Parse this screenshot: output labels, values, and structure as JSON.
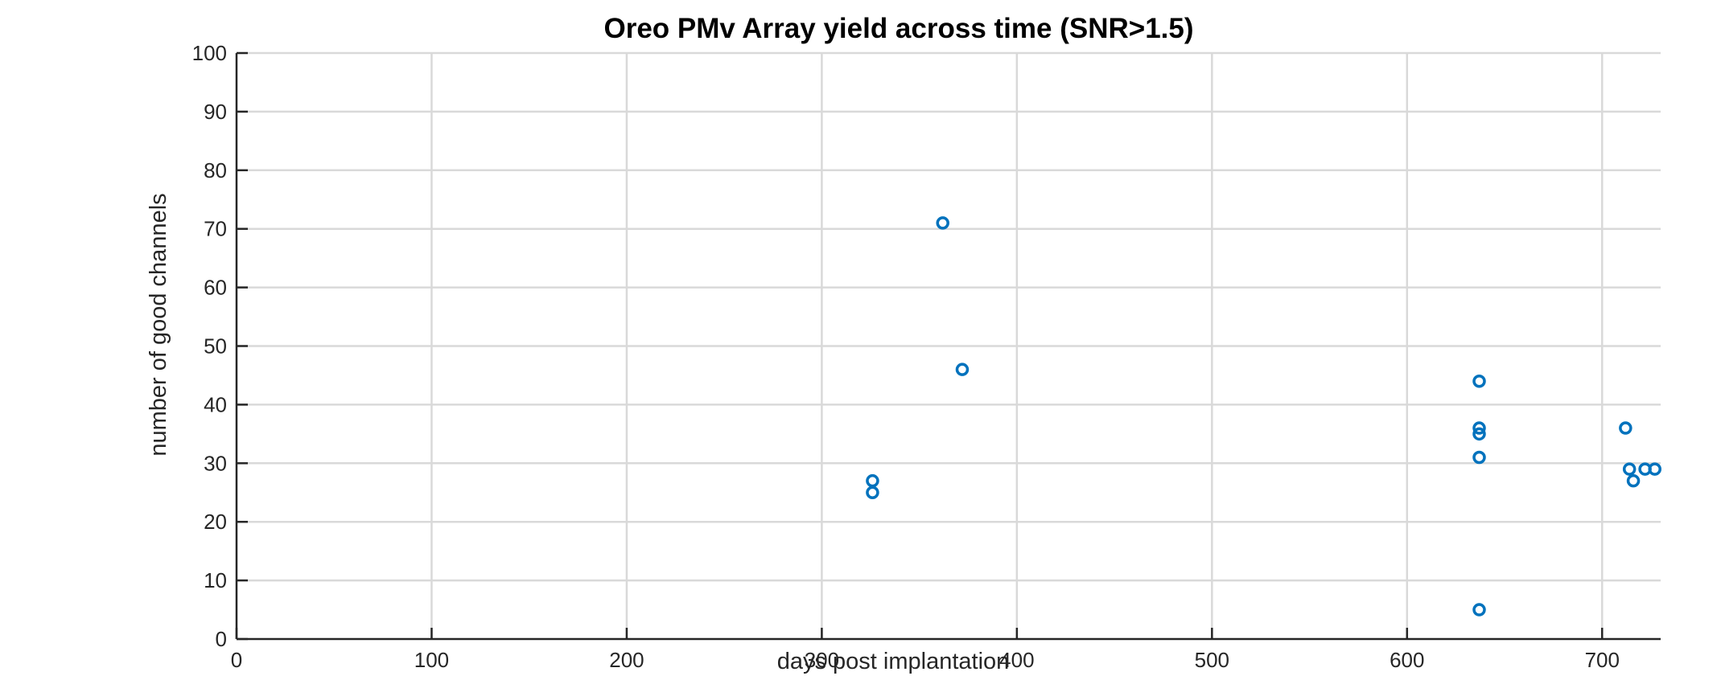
{
  "chart_data": {
    "type": "scatter",
    "title": "Oreo PMv Array yield across time (SNR>1.5)",
    "xlabel": "days post implantation",
    "ylabel": "number of good channels",
    "xlim": [
      0,
      730
    ],
    "ylim": [
      0,
      100
    ],
    "xticks": [
      0,
      100,
      200,
      300,
      400,
      500,
      600,
      700
    ],
    "yticks": [
      0,
      10,
      20,
      30,
      40,
      50,
      60,
      70,
      80,
      90,
      100
    ],
    "grid": true,
    "marker": "open-circle",
    "marker_color": "#0072BD",
    "points": [
      {
        "x": 326,
        "y": 27
      },
      {
        "x": 326,
        "y": 25
      },
      {
        "x": 362,
        "y": 71
      },
      {
        "x": 372,
        "y": 46
      },
      {
        "x": 637,
        "y": 44
      },
      {
        "x": 637,
        "y": 36
      },
      {
        "x": 637,
        "y": 35
      },
      {
        "x": 637,
        "y": 31
      },
      {
        "x": 637,
        "y": 5
      },
      {
        "x": 712,
        "y": 36
      },
      {
        "x": 714,
        "y": 29
      },
      {
        "x": 716,
        "y": 27
      },
      {
        "x": 722,
        "y": 29
      },
      {
        "x": 727,
        "y": 29
      }
    ]
  }
}
